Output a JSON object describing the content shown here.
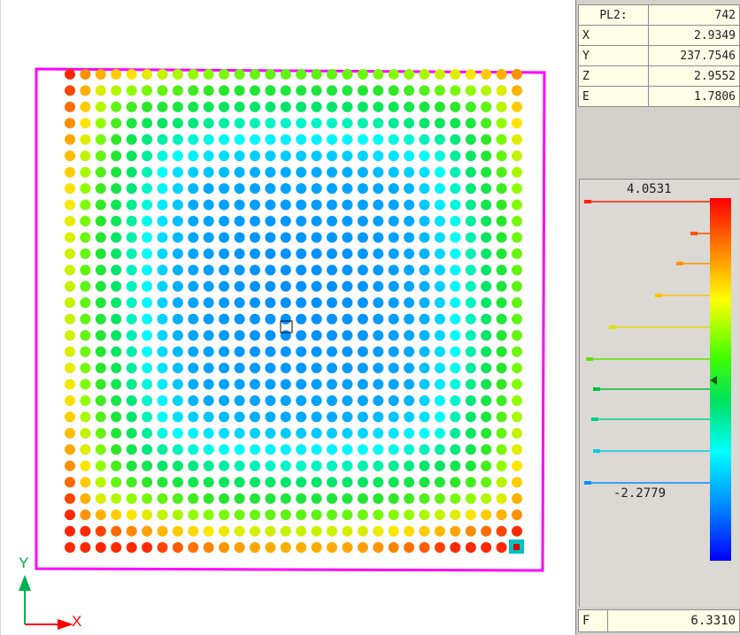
{
  "info_panel": {
    "header": {
      "label": "PL2:",
      "value": "742"
    },
    "rows": [
      {
        "label": "X",
        "value": "2.9349"
      },
      {
        "label": "Y",
        "value": "237.7546"
      },
      {
        "label": "Z",
        "value": "2.9552"
      },
      {
        "label": "E",
        "value": "1.7806"
      }
    ]
  },
  "legend": {
    "max_value": "4.0531",
    "min_value": "-2.2779",
    "colors": [
      "#ff2000",
      "#ff7000",
      "#ffd000",
      "#80ff00",
      "#00e060",
      "#00ffff",
      "#0090ff",
      "#0000ff"
    ]
  },
  "footer": {
    "label": "F",
    "value": "6.3310"
  },
  "axes": {
    "y_label": "Y",
    "x_label": "X"
  },
  "grid": {
    "rows": 30,
    "cols": 30,
    "selected_center": [
      16,
      13
    ],
    "selected_corner": [
      29,
      29
    ]
  },
  "colors": {
    "boundary": "#ff00ff",
    "axis_y": "#00b050",
    "axis_x": "#ff0000",
    "marker": "#00c0c0"
  }
}
